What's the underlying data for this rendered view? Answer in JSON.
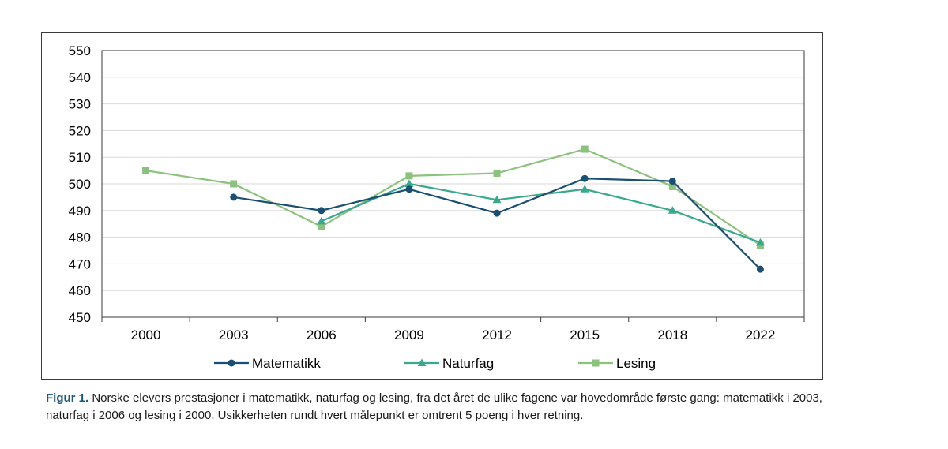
{
  "chart_data": {
    "type": "line",
    "categories": [
      "2000",
      "2003",
      "2006",
      "2009",
      "2012",
      "2015",
      "2018",
      "2022"
    ],
    "ylim": [
      450,
      550
    ],
    "yticks": [
      450,
      460,
      470,
      480,
      490,
      500,
      510,
      520,
      530,
      540,
      550
    ],
    "grid": true,
    "legend_position": "bottom",
    "series": [
      {
        "name": "Matematikk",
        "color": "#1b4f72",
        "marker": "circle",
        "values": [
          null,
          495,
          490,
          498,
          489,
          502,
          501,
          468
        ]
      },
      {
        "name": "Naturfag",
        "color": "#3aa88f",
        "marker": "triangle",
        "values": [
          null,
          null,
          486,
          500,
          494,
          498,
          490,
          478
        ]
      },
      {
        "name": "Lesing",
        "color": "#8dc27e",
        "marker": "square",
        "values": [
          505,
          500,
          484,
          503,
          504,
          513,
          499,
          477
        ]
      }
    ]
  },
  "caption": {
    "label": "Figur 1.",
    "text": " Norske elevers prestasjoner i matematikk, naturfag og lesing, fra det året de ulike fagene var hovedområde første gang: matematikk i 2003, naturfag i 2006 og lesing i 2000. Usikkerheten rundt hvert målepunkt er omtrent 5 poeng i hver retning."
  }
}
